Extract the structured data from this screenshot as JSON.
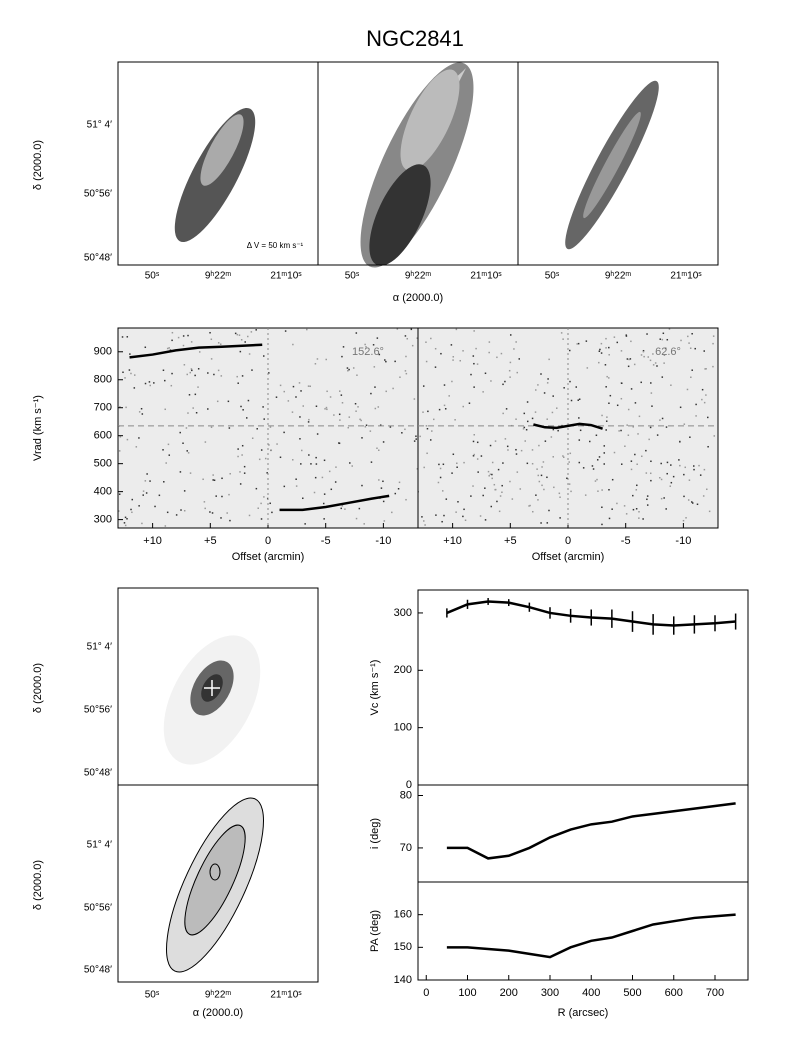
{
  "title": "NGC2841",
  "images": {
    "dec_ticks": [
      "51° 4′",
      "50°56′",
      "50°48′"
    ],
    "ra_ticks": [
      "50ˢ",
      "9ʰ22ᵐ",
      "21ᵐ10ˢ"
    ],
    "ra_label": "α (2000.0)",
    "dec_label": "δ (2000.0)",
    "annotation": "Δ V = 50 km s⁻¹"
  },
  "chart_data": [
    {
      "type": "line",
      "annotation": "152.6°",
      "ylabel": "Vrad (km s⁻¹)",
      "xlabel": "Offset (arcmin)",
      "xlim": [
        13,
        -13
      ],
      "ylim": [
        270,
        985
      ],
      "xticks": [
        {
          "value": 10,
          "label": "+10"
        },
        {
          "value": 5,
          "label": "+5"
        },
        0,
        -5,
        -10
      ],
      "yticks": [
        300,
        400,
        500,
        600,
        700,
        800,
        900
      ],
      "hline": 635,
      "vline": 0,
      "series": [
        {
          "color": "#000000",
          "x": [
            12,
            10,
            8,
            6,
            4,
            2,
            0.5
          ],
          "values": [
            880,
            890,
            905,
            915,
            918,
            922,
            925
          ]
        },
        {
          "color": "#000000",
          "x": [
            -1,
            -3,
            -5,
            -7,
            -9,
            -10.5
          ],
          "values": [
            335,
            335,
            345,
            360,
            375,
            385
          ]
        }
      ]
    },
    {
      "type": "line",
      "annotation": "62.6°",
      "xlabel": "Offset (arcmin)",
      "xlim": [
        13,
        -13
      ],
      "ylim": [
        270,
        985
      ],
      "xticks": [
        {
          "value": 10,
          "label": "+10"
        },
        {
          "value": 5,
          "label": "+5"
        },
        0,
        -5,
        -10
      ],
      "hline": 635,
      "vline": 0,
      "series": [
        {
          "color": "#000000",
          "x": [
            3,
            2,
            1,
            0,
            -1,
            -2,
            -3
          ],
          "values": [
            640,
            630,
            628,
            635,
            642,
            638,
            625
          ]
        }
      ]
    },
    {
      "type": "errorbar",
      "ylabel": "Vc (km s⁻¹)",
      "xlim": [
        -20,
        780
      ],
      "ylim": [
        0,
        340
      ],
      "yticks": [
        0,
        100,
        200,
        300
      ],
      "x": [
        50,
        100,
        150,
        200,
        250,
        300,
        350,
        400,
        450,
        500,
        550,
        600,
        650,
        700,
        750
      ],
      "values": [
        300,
        315,
        320,
        318,
        310,
        300,
        295,
        292,
        290,
        285,
        280,
        278,
        280,
        282,
        285
      ],
      "errors": [
        8,
        8,
        6,
        6,
        8,
        10,
        12,
        14,
        16,
        18,
        18,
        16,
        16,
        14,
        14
      ],
      "color": "#000000"
    },
    {
      "type": "line",
      "ylabel": "i (deg)",
      "xlim": [
        -20,
        780
      ],
      "ylim": [
        63.5,
        82
      ],
      "yticks": [
        70,
        80
      ],
      "series": [
        {
          "color": "#000000",
          "x": [
            50,
            100,
            150,
            200,
            250,
            300,
            350,
            400,
            450,
            500,
            550,
            600,
            650,
            700,
            750
          ],
          "values": [
            70,
            70,
            68,
            68.5,
            70,
            72,
            73.5,
            74.5,
            75,
            76,
            76.5,
            77,
            77.5,
            78,
            78.5
          ]
        }
      ]
    },
    {
      "type": "line",
      "ylabel": "PA (deg)",
      "xlabel": "R (arcsec)",
      "xlim": [
        -20,
        780
      ],
      "ylim": [
        140,
        170
      ],
      "xticks": [
        0,
        100,
        200,
        300,
        400,
        500,
        600,
        700
      ],
      "yticks": [
        140,
        150,
        160
      ],
      "series": [
        {
          "color": "#000000",
          "x": [
            50,
            100,
            150,
            200,
            250,
            300,
            350,
            400,
            450,
            500,
            550,
            600,
            650,
            700,
            750
          ],
          "values": [
            150,
            150,
            149.5,
            149,
            148,
            147,
            150,
            152,
            153,
            155,
            157,
            158,
            159,
            159.5,
            160
          ]
        }
      ]
    }
  ]
}
